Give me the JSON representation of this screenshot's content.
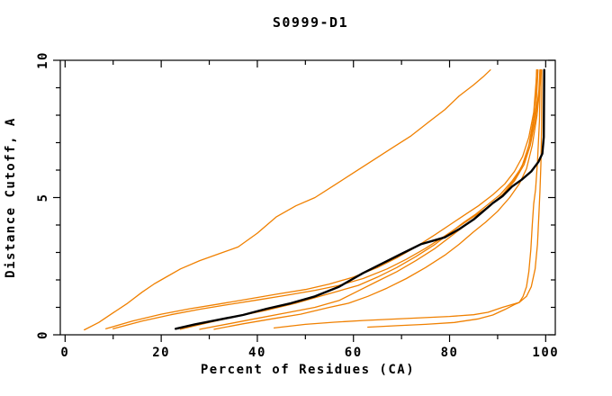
{
  "title": "S0999-D1",
  "chart_data": {
    "type": "line",
    "title": "S0999-D1",
    "xlabel": "Percent of Residues (CA)",
    "ylabel": "Distance Cutoff, A",
    "xlim": [
      -1,
      102
    ],
    "ylim": [
      0,
      10
    ],
    "grid": false,
    "legend": "none",
    "x_major_ticks": [
      0,
      20,
      40,
      60,
      80,
      100
    ],
    "x_minor_ticks": [
      10,
      30,
      50,
      70,
      90
    ],
    "y_major_ticks": [
      0,
      5,
      10
    ],
    "y_minor_ticks": [
      1,
      2,
      3,
      4,
      6,
      7,
      8,
      9
    ],
    "colors": {
      "model_line": "#000000",
      "reference_lines": "#f08000",
      "frame": "#000000"
    },
    "series": [
      {
        "name": "orange-curve-1",
        "color": "#f08000",
        "width": 1.3,
        "points": [
          [
            4,
            0.18
          ],
          [
            7,
            0.45
          ],
          [
            10,
            0.8
          ],
          [
            13,
            1.15
          ],
          [
            16,
            1.55
          ],
          [
            18.5,
            1.85
          ],
          [
            20,
            2.0
          ],
          [
            24,
            2.4
          ],
          [
            28,
            2.7
          ],
          [
            32,
            2.95
          ],
          [
            36,
            3.2
          ],
          [
            40,
            3.7
          ],
          [
            44,
            4.3
          ],
          [
            48,
            4.7
          ],
          [
            52,
            5.0
          ],
          [
            56,
            5.45
          ],
          [
            60,
            5.9
          ],
          [
            64,
            6.35
          ],
          [
            68,
            6.8
          ],
          [
            72,
            7.25
          ],
          [
            76,
            7.8
          ],
          [
            79,
            8.2
          ],
          [
            82,
            8.7
          ],
          [
            85,
            9.1
          ],
          [
            87,
            9.4
          ],
          [
            88.5,
            9.65
          ]
        ]
      },
      {
        "name": "orange-curve-2",
        "color": "#f08000",
        "width": 1.3,
        "points": [
          [
            8.5,
            0.22
          ],
          [
            14,
            0.5
          ],
          [
            20,
            0.75
          ],
          [
            26,
            0.95
          ],
          [
            32,
            1.12
          ],
          [
            38,
            1.3
          ],
          [
            44,
            1.48
          ],
          [
            50,
            1.65
          ],
          [
            55,
            1.85
          ],
          [
            60,
            2.1
          ],
          [
            65,
            2.45
          ],
          [
            69,
            2.8
          ],
          [
            73,
            3.2
          ],
          [
            77,
            3.65
          ],
          [
            80,
            4.0
          ],
          [
            83,
            4.35
          ],
          [
            86,
            4.7
          ],
          [
            89,
            5.1
          ],
          [
            91.5,
            5.5
          ],
          [
            93.5,
            5.95
          ],
          [
            95.2,
            6.5
          ],
          [
            96.5,
            7.2
          ],
          [
            97.5,
            8.1
          ],
          [
            98.2,
            9.65
          ]
        ]
      },
      {
        "name": "orange-curve-3",
        "color": "#f08000",
        "width": 1.3,
        "points": [
          [
            10,
            0.22
          ],
          [
            16,
            0.5
          ],
          [
            22,
            0.73
          ],
          [
            28,
            0.93
          ],
          [
            34,
            1.1
          ],
          [
            40,
            1.27
          ],
          [
            46,
            1.44
          ],
          [
            52,
            1.62
          ],
          [
            57,
            1.8
          ],
          [
            62,
            2.05
          ],
          [
            67,
            2.4
          ],
          [
            71,
            2.75
          ],
          [
            75,
            3.15
          ],
          [
            79,
            3.6
          ],
          [
            82,
            3.95
          ],
          [
            85,
            4.3
          ],
          [
            88,
            4.65
          ],
          [
            91,
            5.1
          ],
          [
            93.5,
            5.6
          ],
          [
            95.5,
            6.2
          ],
          [
            96.8,
            6.9
          ],
          [
            97.8,
            7.8
          ],
          [
            98.6,
            8.9
          ],
          [
            98.8,
            9.65
          ]
        ]
      },
      {
        "name": "orange-curve-4",
        "color": "#f08000",
        "width": 1.3,
        "points": [
          [
            24,
            0.2
          ],
          [
            30,
            0.45
          ],
          [
            36,
            0.68
          ],
          [
            42,
            0.9
          ],
          [
            48,
            1.15
          ],
          [
            53,
            1.4
          ],
          [
            57,
            1.6
          ],
          [
            61,
            1.8
          ],
          [
            65,
            2.1
          ],
          [
            69,
            2.45
          ],
          [
            73,
            2.85
          ],
          [
            77,
            3.3
          ],
          [
            80,
            3.7
          ],
          [
            83,
            4.1
          ],
          [
            85.5,
            4.4
          ],
          [
            88,
            4.75
          ],
          [
            90.5,
            5.1
          ],
          [
            93,
            5.6
          ],
          [
            95,
            6.1
          ],
          [
            96.5,
            6.9
          ],
          [
            97.5,
            7.9
          ],
          [
            98,
            9.0
          ],
          [
            98.1,
            9.65
          ]
        ]
      },
      {
        "name": "orange-curve-5",
        "color": "#f08000",
        "width": 1.3,
        "points": [
          [
            28,
            0.2
          ],
          [
            34,
            0.4
          ],
          [
            40,
            0.6
          ],
          [
            46,
            0.8
          ],
          [
            52,
            1.0
          ],
          [
            57,
            1.25
          ],
          [
            61,
            1.6
          ],
          [
            65,
            1.95
          ],
          [
            69,
            2.3
          ],
          [
            73,
            2.7
          ],
          [
            77,
            3.15
          ],
          [
            80,
            3.55
          ],
          [
            83,
            3.95
          ],
          [
            86,
            4.35
          ],
          [
            88.5,
            4.7
          ],
          [
            91,
            5.1
          ],
          [
            93.5,
            5.65
          ],
          [
            95.5,
            6.3
          ],
          [
            97,
            7.2
          ],
          [
            98,
            8.3
          ],
          [
            98.4,
            9.65
          ]
        ]
      },
      {
        "name": "orange-curve-6",
        "color": "#f08000",
        "width": 1.3,
        "points": [
          [
            31,
            0.2
          ],
          [
            37,
            0.4
          ],
          [
            43,
            0.58
          ],
          [
            49,
            0.75
          ],
          [
            55,
            1.0
          ],
          [
            59,
            1.15
          ],
          [
            63,
            1.4
          ],
          [
            67,
            1.7
          ],
          [
            71,
            2.05
          ],
          [
            75,
            2.45
          ],
          [
            79,
            2.9
          ],
          [
            82,
            3.3
          ],
          [
            85,
            3.75
          ],
          [
            87.5,
            4.1
          ],
          [
            90,
            4.5
          ],
          [
            92.5,
            5.0
          ],
          [
            94.5,
            5.5
          ],
          [
            96,
            6.05
          ],
          [
            97.2,
            6.9
          ],
          [
            98.2,
            8.0
          ],
          [
            98.9,
            9.2
          ],
          [
            99.0,
            9.65
          ]
        ]
      },
      {
        "name": "orange-curve-7",
        "color": "#f08000",
        "width": 1.3,
        "points": [
          [
            43.5,
            0.25
          ],
          [
            50,
            0.38
          ],
          [
            56,
            0.46
          ],
          [
            62,
            0.52
          ],
          [
            68,
            0.57
          ],
          [
            74,
            0.62
          ],
          [
            80,
            0.67
          ],
          [
            85,
            0.73
          ],
          [
            88,
            0.82
          ],
          [
            91,
            1.0
          ],
          [
            94.5,
            1.18
          ],
          [
            96,
            1.4
          ],
          [
            97,
            1.75
          ],
          [
            97.8,
            2.4
          ],
          [
            98.3,
            3.3
          ],
          [
            98.6,
            4.4
          ],
          [
            98.8,
            5.2
          ],
          [
            99.0,
            6.2
          ],
          [
            99.15,
            7.6
          ],
          [
            99.2,
            9.65
          ]
        ]
      },
      {
        "name": "orange-curve-8",
        "color": "#f08000",
        "width": 1.3,
        "points": [
          [
            63,
            0.28
          ],
          [
            69,
            0.33
          ],
          [
            75,
            0.38
          ],
          [
            81,
            0.45
          ],
          [
            86,
            0.58
          ],
          [
            89,
            0.72
          ],
          [
            91.5,
            0.92
          ],
          [
            93.5,
            1.1
          ],
          [
            94.5,
            1.18
          ],
          [
            95.3,
            1.4
          ],
          [
            96,
            1.75
          ],
          [
            96.5,
            2.3
          ],
          [
            96.9,
            3.1
          ],
          [
            97.2,
            4.0
          ],
          [
            97.5,
            4.77
          ],
          [
            97.9,
            5.3
          ],
          [
            98.3,
            6.3
          ],
          [
            98.7,
            7.8
          ],
          [
            98.9,
            9.65
          ]
        ]
      },
      {
        "name": "black-model-curve",
        "color": "#000000",
        "width": 2.4,
        "points": [
          [
            23,
            0.22
          ],
          [
            27,
            0.38
          ],
          [
            32,
            0.55
          ],
          [
            37,
            0.72
          ],
          [
            42,
            0.95
          ],
          [
            47,
            1.15
          ],
          [
            52,
            1.4
          ],
          [
            57,
            1.75
          ],
          [
            62,
            2.25
          ],
          [
            66,
            2.6
          ],
          [
            70,
            2.95
          ],
          [
            74,
            3.3
          ],
          [
            77,
            3.45
          ],
          [
            79,
            3.55
          ],
          [
            82,
            3.85
          ],
          [
            85,
            4.2
          ],
          [
            87,
            4.5
          ],
          [
            89,
            4.8
          ],
          [
            91,
            5.05
          ],
          [
            93,
            5.4
          ],
          [
            95,
            5.65
          ],
          [
            97,
            5.95
          ],
          [
            98.5,
            6.3
          ],
          [
            99.3,
            6.6
          ],
          [
            99.6,
            7.2
          ],
          [
            99.7,
            9.65
          ]
        ]
      }
    ]
  }
}
